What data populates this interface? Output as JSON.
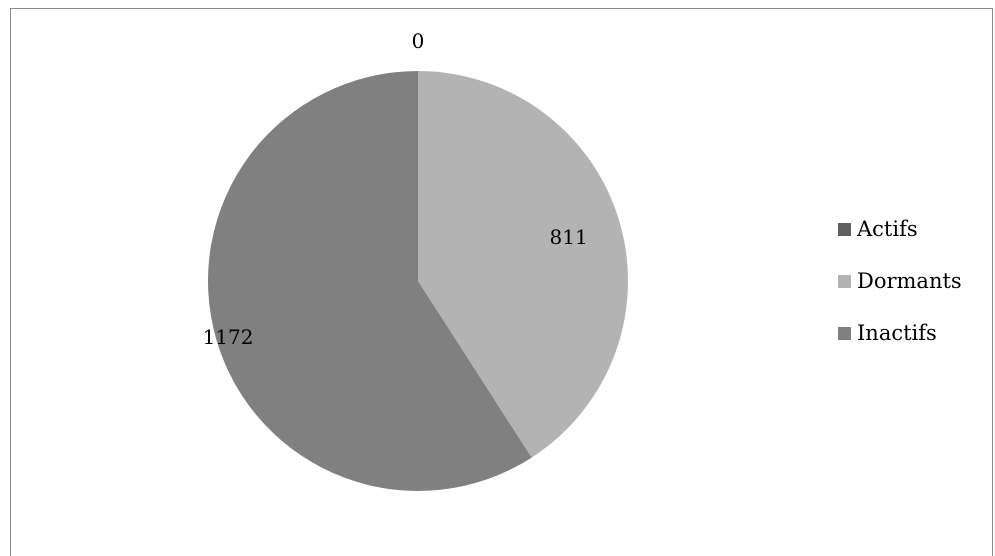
{
  "chart_data": {
    "type": "pie",
    "categories": [
      "Actifs",
      "Dormants",
      "Inactifs"
    ],
    "values": [
      0,
      811,
      1172
    ],
    "data_labels": [
      "0",
      "811",
      "1172"
    ],
    "colors": [
      "#5f5f5f",
      "#b3b3b3",
      "#808080"
    ],
    "start_angle": "12 o'clock",
    "direction": "clockwise",
    "legend_position": "right",
    "title": "",
    "xlabel": "",
    "ylabel": ""
  },
  "legend": {
    "items": [
      {
        "label": "Actifs",
        "color": "#5f5f5f"
      },
      {
        "label": "Dormants",
        "color": "#b3b3b3"
      },
      {
        "label": "Inactifs",
        "color": "#808080"
      }
    ]
  }
}
